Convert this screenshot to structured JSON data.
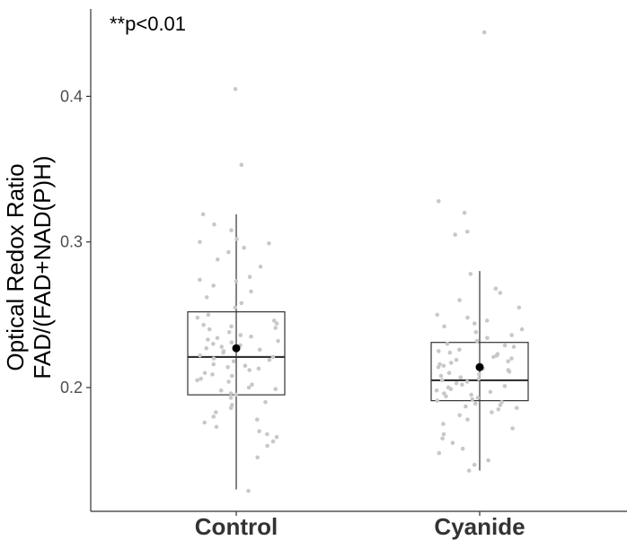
{
  "chart_data": {
    "type": "boxplot",
    "annotation": "**p<0.01",
    "ylabel_lines": [
      "Optical Redox Ratio",
      "FAD/(FAD+NAD(P)H)"
    ],
    "ylim": [
      0.115,
      0.46
    ],
    "y_ticks": [
      {
        "value": 0.2,
        "label": "0.2"
      },
      {
        "value": 0.3,
        "label": "0.3"
      },
      {
        "value": 0.4,
        "label": "0.4"
      }
    ],
    "grid": false,
    "colors": {
      "axis": "#333333",
      "box": "#333333",
      "point": "#c8c8c8",
      "mean": "#000000"
    },
    "groups": [
      {
        "name": "Control",
        "whisker_low": 0.13,
        "q1": 0.195,
        "median": 0.221,
        "q3": 0.252,
        "whisker_high": 0.319,
        "mean": 0.227,
        "points": [
          0.405,
          0.353,
          0.319,
          0.312,
          0.308,
          0.302,
          0.3,
          0.299,
          0.296,
          0.293,
          0.288,
          0.283,
          0.276,
          0.274,
          0.273,
          0.27,
          0.266,
          0.262,
          0.258,
          0.255,
          0.25,
          0.248,
          0.246,
          0.244,
          0.243,
          0.242,
          0.241,
          0.24,
          0.238,
          0.236,
          0.235,
          0.234,
          0.233,
          0.232,
          0.231,
          0.23,
          0.229,
          0.228,
          0.227,
          0.226,
          0.225,
          0.224,
          0.222,
          0.221,
          0.22,
          0.219,
          0.218,
          0.216,
          0.215,
          0.214,
          0.213,
          0.212,
          0.21,
          0.209,
          0.208,
          0.206,
          0.205,
          0.204,
          0.202,
          0.2,
          0.199,
          0.198,
          0.196,
          0.195,
          0.193,
          0.19,
          0.188,
          0.186,
          0.183,
          0.18,
          0.178,
          0.176,
          0.173,
          0.17,
          0.168,
          0.166,
          0.163,
          0.16,
          0.152,
          0.129
        ]
      },
      {
        "name": "Cyanide",
        "whisker_low": 0.143,
        "q1": 0.191,
        "median": 0.205,
        "q3": 0.231,
        "whisker_high": 0.28,
        "mean": 0.214,
        "points": [
          0.444,
          0.328,
          0.32,
          0.307,
          0.305,
          0.278,
          0.268,
          0.265,
          0.26,
          0.255,
          0.25,
          0.248,
          0.246,
          0.244,
          0.242,
          0.24,
          0.238,
          0.236,
          0.234,
          0.232,
          0.23,
          0.229,
          0.228,
          0.226,
          0.225,
          0.224,
          0.223,
          0.222,
          0.221,
          0.22,
          0.219,
          0.218,
          0.217,
          0.216,
          0.215,
          0.214,
          0.213,
          0.212,
          0.211,
          0.21,
          0.209,
          0.208,
          0.207,
          0.206,
          0.205,
          0.204,
          0.203,
          0.202,
          0.201,
          0.2,
          0.199,
          0.198,
          0.197,
          0.196,
          0.195,
          0.194,
          0.193,
          0.192,
          0.191,
          0.19,
          0.189,
          0.188,
          0.187,
          0.186,
          0.185,
          0.183,
          0.181,
          0.178,
          0.175,
          0.172,
          0.168,
          0.165,
          0.162,
          0.158,
          0.155,
          0.15,
          0.147,
          0.143
        ]
      }
    ]
  }
}
